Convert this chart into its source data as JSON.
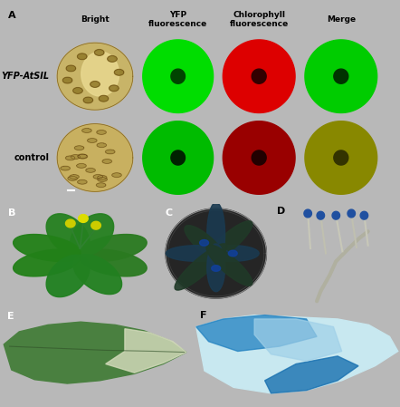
{
  "figure_bg": "#b8b8b8",
  "panel_A_bg": "#b8b8b8",
  "col_labels": [
    "Bright",
    "YFP\nfluorescence",
    "Chlorophyll\nfluorescence",
    "Merge"
  ],
  "row_labels_italic": [
    "YFP-AtSIL",
    ""
  ],
  "row_labels_normal": [
    "",
    "control"
  ],
  "panel_letter_fontsize": 8,
  "col_label_fontsize": 6.5,
  "row_label_fontsize": 7,
  "panel_letters": [
    "A",
    "B",
    "C",
    "D",
    "E",
    "F"
  ],
  "bright_bg_color": "#c8b870",
  "bright_cell_color_r1": "#d4c870",
  "bright_bg_r2": "#c8b870",
  "yfp_bright_r1": "#00dd00",
  "yfp_dark_r1": "#004400",
  "yfp_bright_r2": "#00bb00",
  "yfp_dark_r2": "#002200",
  "chloro_bright_r1": "#dd0000",
  "chloro_dark_r1": "#330000",
  "chloro_bright_r2": "#990000",
  "chloro_dark_r2": "#220000",
  "merge_bright_r1": "#00cc00",
  "merge_dark_r1": "#003300",
  "merge_bright_r2": "#888800",
  "merge_dark_r2": "#333300",
  "panel_B_bg": "#080808",
  "panel_C_bg": "#1a1a1a",
  "panel_D_bg": "#ddddd8",
  "panel_E_bg": "#303030",
  "panel_F_bg": "#e8f0f8"
}
